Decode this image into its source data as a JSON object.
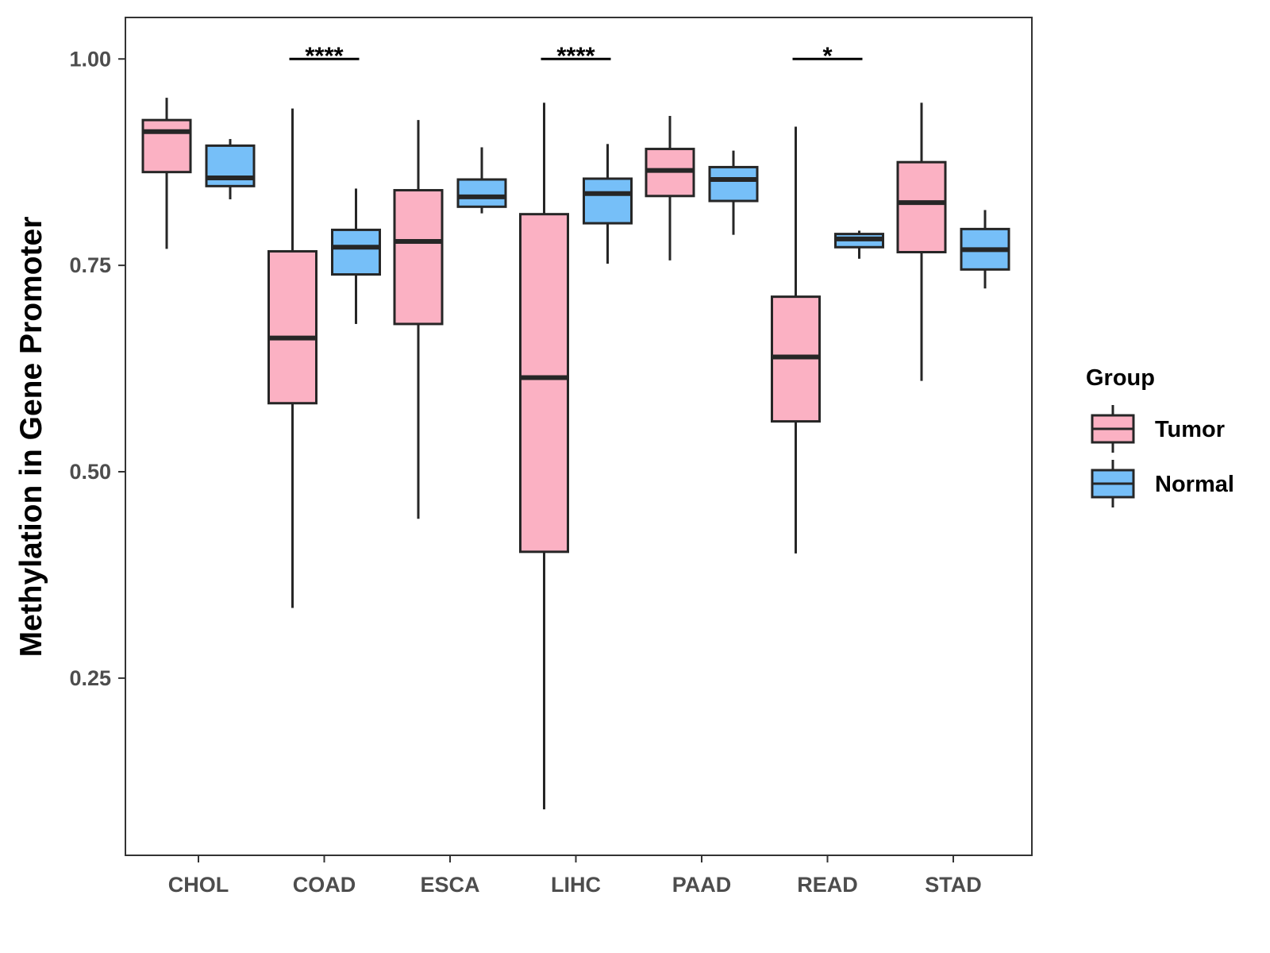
{
  "chart_data": {
    "type": "boxplot",
    "title": "",
    "xlabel": "",
    "ylabel": "Methylation in Gene Promoter",
    "ylim": [
      0.035,
      1.05
    ],
    "yticks": [
      0.25,
      0.5,
      0.75,
      1.0
    ],
    "ytick_labels": [
      "0.25",
      "0.50",
      "0.75",
      "1.00"
    ],
    "categories": [
      "CHOL",
      "COAD",
      "ESCA",
      "LIHC",
      "PAAD",
      "READ",
      "STAD"
    ],
    "grid": false,
    "legend": {
      "title": "Group",
      "position": "right",
      "entries": [
        {
          "name": "Tumor",
          "color": "#FBB1C3"
        },
        {
          "name": "Normal",
          "color": "#76BFF8"
        }
      ]
    },
    "series": [
      {
        "name": "Tumor",
        "color": "#FBB1C3",
        "boxes": [
          {
            "category": "CHOL",
            "whisker_low": 0.77,
            "q1": 0.863,
            "median": 0.912,
            "q3": 0.926,
            "whisker_high": 0.953
          },
          {
            "category": "COAD",
            "whisker_low": 0.335,
            "q1": 0.583,
            "median": 0.662,
            "q3": 0.767,
            "whisker_high": 0.94
          },
          {
            "category": "ESCA",
            "whisker_low": 0.443,
            "q1": 0.679,
            "median": 0.779,
            "q3": 0.841,
            "whisker_high": 0.926
          },
          {
            "category": "LIHC",
            "whisker_low": 0.091,
            "q1": 0.403,
            "median": 0.614,
            "q3": 0.812,
            "whisker_high": 0.947
          },
          {
            "category": "PAAD",
            "whisker_low": 0.756,
            "q1": 0.834,
            "median": 0.865,
            "q3": 0.891,
            "whisker_high": 0.931
          },
          {
            "category": "READ",
            "whisker_low": 0.401,
            "q1": 0.561,
            "median": 0.639,
            "q3": 0.712,
            "whisker_high": 0.918
          },
          {
            "category": "STAD",
            "whisker_low": 0.61,
            "q1": 0.766,
            "median": 0.826,
            "q3": 0.875,
            "whisker_high": 0.947
          }
        ]
      },
      {
        "name": "Normal",
        "color": "#76BFF8",
        "boxes": [
          {
            "category": "CHOL",
            "whisker_low": 0.83,
            "q1": 0.846,
            "median": 0.856,
            "q3": 0.895,
            "whisker_high": 0.903
          },
          {
            "category": "COAD",
            "whisker_low": 0.679,
            "q1": 0.739,
            "median": 0.772,
            "q3": 0.793,
            "whisker_high": 0.843
          },
          {
            "category": "ESCA",
            "whisker_low": 0.813,
            "q1": 0.821,
            "median": 0.833,
            "q3": 0.854,
            "whisker_high": 0.893
          },
          {
            "category": "LIHC",
            "whisker_low": 0.752,
            "q1": 0.801,
            "median": 0.837,
            "q3": 0.855,
            "whisker_high": 0.897
          },
          {
            "category": "PAAD",
            "whisker_low": 0.787,
            "q1": 0.828,
            "median": 0.854,
            "q3": 0.869,
            "whisker_high": 0.889
          },
          {
            "category": "READ",
            "whisker_low": 0.758,
            "q1": 0.772,
            "median": 0.782,
            "q3": 0.788,
            "whisker_high": 0.792
          },
          {
            "category": "STAD",
            "whisker_low": 0.722,
            "q1": 0.745,
            "median": 0.769,
            "q3": 0.794,
            "whisker_high": 0.817
          }
        ]
      }
    ],
    "significance": [
      {
        "category": "COAD",
        "label": "****",
        "y": 1.0
      },
      {
        "category": "LIHC",
        "label": "****",
        "y": 1.0
      },
      {
        "category": "READ",
        "label": "*",
        "y": 1.0
      }
    ]
  }
}
